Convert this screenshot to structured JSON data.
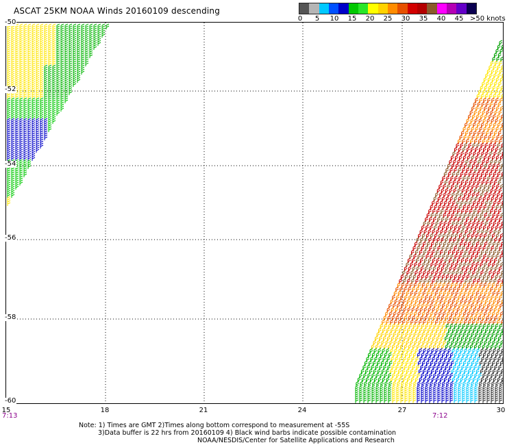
{
  "title": "ASCAT 25KM NOAA Winds 20160109 descending",
  "scale": {
    "colors": [
      "#555555",
      "#b5b5b5",
      "#00c8ff",
      "#0050ff",
      "#0000c8",
      "#00c800",
      "#28e628",
      "#ffff00",
      "#ffd200",
      "#ff8c00",
      "#e65000",
      "#d20000",
      "#b40000",
      "#8b5a2b",
      "#ff00ff",
      "#b400b4",
      "#6400c8",
      "#0a0050"
    ],
    "labels": [
      "0",
      "5",
      "10",
      "15",
      "20",
      "25",
      "30",
      "35",
      "40",
      "45",
      ">50 knots"
    ]
  },
  "map": {
    "lat_labels": [
      "-50",
      "-52",
      "-54",
      "-56",
      "-58",
      "-60"
    ],
    "lon_labels": [
      "15",
      "18",
      "21",
      "24",
      "27",
      "30"
    ],
    "time_left": "7:13",
    "time_right": "7:12"
  },
  "notes": [
    "Note: 1) Times are GMT 2)Times along bottom correspond to measurement at -55S",
    "3)Data buffer is 22 hrs from 20160109 4) Black wind barbs indicate possible contamination",
    "NOAA/NESDIS/Center for Satellite Applications and Research"
  ]
}
